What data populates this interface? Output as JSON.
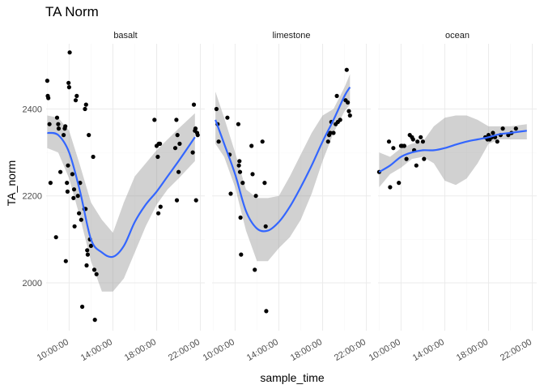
{
  "chart_data": {
    "type": "scatter",
    "title": "TA Norm",
    "xlabel": "sample_time",
    "ylabel": "TA_norm",
    "x_ticks": [
      "10:00:00",
      "14:00:00",
      "18:00:00",
      "22:00:00"
    ],
    "x_tick_hours": [
      10,
      14,
      18,
      22
    ],
    "xlim_hours": [
      7.9,
      22.4
    ],
    "y_ticks": [
      2000,
      2200,
      2400
    ],
    "ylim": [
      1890,
      2550
    ],
    "grid": true,
    "facets": [
      {
        "name": "basalt",
        "points": [
          [
            8.0,
            2465
          ],
          [
            8.05,
            2430
          ],
          [
            8.1,
            2425
          ],
          [
            8.2,
            2365
          ],
          [
            8.3,
            2230
          ],
          [
            8.8,
            2105
          ],
          [
            8.9,
            2380
          ],
          [
            9.0,
            2365
          ],
          [
            9.05,
            2355
          ],
          [
            9.2,
            2255
          ],
          [
            9.5,
            2340
          ],
          [
            9.6,
            2355
          ],
          [
            9.65,
            2360
          ],
          [
            9.7,
            2050
          ],
          [
            9.8,
            2230
          ],
          [
            9.85,
            2210
          ],
          [
            9.9,
            2270
          ],
          [
            9.95,
            2460
          ],
          [
            10.0,
            2450
          ],
          [
            10.05,
            2530
          ],
          [
            10.3,
            2250
          ],
          [
            10.4,
            2195
          ],
          [
            10.45,
            2215
          ],
          [
            10.5,
            2130
          ],
          [
            10.6,
            2420
          ],
          [
            10.7,
            2430
          ],
          [
            10.8,
            2200
          ],
          [
            10.9,
            2160
          ],
          [
            11.0,
            2230
          ],
          [
            11.1,
            2145
          ],
          [
            11.2,
            1945
          ],
          [
            11.4,
            2170
          ],
          [
            11.45,
            2400
          ],
          [
            11.5,
            2170
          ],
          [
            11.55,
            2410
          ],
          [
            11.6,
            2040
          ],
          [
            11.65,
            2075
          ],
          [
            11.7,
            2065
          ],
          [
            11.8,
            2340
          ],
          [
            11.9,
            2100
          ],
          [
            12.0,
            2085
          ],
          [
            12.2,
            2290
          ],
          [
            12.3,
            2030
          ],
          [
            12.5,
            2020
          ],
          [
            12.35,
            1915
          ],
          [
            17.8,
            2375
          ],
          [
            18.0,
            2315
          ],
          [
            18.1,
            2290
          ],
          [
            18.15,
            2160
          ],
          [
            18.2,
            2320
          ],
          [
            18.3,
            2320
          ],
          [
            18.35,
            2175
          ],
          [
            19.7,
            2310
          ],
          [
            19.8,
            2375
          ],
          [
            19.85,
            2190
          ],
          [
            19.9,
            2340
          ],
          [
            20.0,
            2255
          ],
          [
            20.1,
            2320
          ],
          [
            21.3,
            2300
          ],
          [
            21.4,
            2410
          ],
          [
            21.5,
            2350
          ],
          [
            21.55,
            2355
          ],
          [
            21.6,
            2190
          ],
          [
            21.7,
            2345
          ],
          [
            21.75,
            2340
          ]
        ],
        "fit_x": [
          8.0,
          9,
          10,
          11,
          12,
          13,
          14,
          15,
          16,
          17,
          18,
          19,
          20,
          21.5
        ],
        "fit_y": [
          2345,
          2340,
          2300,
          2210,
          2100,
          2070,
          2060,
          2085,
          2140,
          2180,
          2210,
          2245,
          2280,
          2335
        ],
        "fit_lo": [
          2310,
          2300,
          2240,
          2150,
          2050,
          1980,
          1980,
          2010,
          2070,
          2130,
          2180,
          2215,
          2240,
          2280
        ],
        "fit_hi": [
          2385,
          2380,
          2350,
          2270,
          2185,
          2145,
          2115,
          2185,
          2245,
          2275,
          2305,
          2330,
          2355,
          2390
        ]
      },
      {
        "name": "limestone",
        "points": [
          [
            8.3,
            2400
          ],
          [
            8.4,
            2365
          ],
          [
            8.5,
            2325
          ],
          [
            9.3,
            2380
          ],
          [
            9.5,
            2295
          ],
          [
            9.6,
            2205
          ],
          [
            10.3,
            2365
          ],
          [
            10.35,
            2270
          ],
          [
            10.4,
            2280
          ],
          [
            10.45,
            2255
          ],
          [
            10.5,
            2150
          ],
          [
            10.55,
            2065
          ],
          [
            10.7,
            2230
          ],
          [
            11.5,
            2315
          ],
          [
            11.6,
            2250
          ],
          [
            11.8,
            2030
          ],
          [
            11.9,
            2200
          ],
          [
            12.5,
            2325
          ],
          [
            12.7,
            2230
          ],
          [
            12.8,
            2130
          ],
          [
            12.85,
            1935
          ],
          [
            18.5,
            2325
          ],
          [
            18.6,
            2340
          ],
          [
            18.7,
            2345
          ],
          [
            18.8,
            2370
          ],
          [
            19.0,
            2345
          ],
          [
            19.2,
            2365
          ],
          [
            19.3,
            2430
          ],
          [
            19.4,
            2370
          ],
          [
            19.6,
            2375
          ],
          [
            20.1,
            2420
          ],
          [
            20.2,
            2490
          ],
          [
            20.3,
            2415
          ],
          [
            20.4,
            2395
          ],
          [
            20.5,
            2385
          ]
        ],
        "fit_x": [
          8.2,
          9,
          10,
          11,
          12,
          13,
          14,
          15,
          16,
          17,
          18,
          19,
          20,
          20.5
        ],
        "fit_y": [
          2375,
          2320,
          2250,
          2165,
          2125,
          2120,
          2140,
          2175,
          2220,
          2270,
          2325,
          2375,
          2430,
          2450
        ],
        "fit_lo": [
          2320,
          2290,
          2220,
          2120,
          2050,
          2050,
          2080,
          2105,
          2145,
          2205,
          2280,
          2345,
          2395,
          2410
        ],
        "fit_hi": [
          2440,
          2380,
          2300,
          2215,
          2195,
          2195,
          2200,
          2245,
          2295,
          2345,
          2385,
          2400,
          2450,
          2480
        ]
      },
      {
        "name": "ocean",
        "points": [
          [
            8.0,
            2255
          ],
          [
            8.9,
            2325
          ],
          [
            9.0,
            2220
          ],
          [
            9.3,
            2310
          ],
          [
            9.8,
            2230
          ],
          [
            10.0,
            2315
          ],
          [
            10.1,
            2315
          ],
          [
            10.3,
            2315
          ],
          [
            10.5,
            2285
          ],
          [
            10.8,
            2340
          ],
          [
            11.0,
            2335
          ],
          [
            11.1,
            2330
          ],
          [
            11.2,
            2305
          ],
          [
            11.4,
            2270
          ],
          [
            11.5,
            2325
          ],
          [
            11.8,
            2335
          ],
          [
            12.0,
            2325
          ],
          [
            12.1,
            2285
          ],
          [
            17.7,
            2335
          ],
          [
            17.9,
            2330
          ],
          [
            18.0,
            2340
          ],
          [
            18.1,
            2330
          ],
          [
            18.3,
            2335
          ],
          [
            18.4,
            2345
          ],
          [
            18.6,
            2335
          ],
          [
            18.8,
            2325
          ],
          [
            19.1,
            2340
          ],
          [
            19.3,
            2355
          ],
          [
            19.8,
            2340
          ],
          [
            20.1,
            2345
          ],
          [
            20.5,
            2355
          ]
        ],
        "fit_x": [
          8.0,
          9,
          10,
          11,
          12,
          13,
          14,
          15,
          16,
          17,
          18,
          19,
          20,
          21.5
        ],
        "fit_y": [
          2255,
          2270,
          2290,
          2300,
          2305,
          2305,
          2310,
          2318,
          2325,
          2330,
          2335,
          2342,
          2345,
          2350
        ],
        "fit_lo": [
          2220,
          2250,
          2265,
          2285,
          2290,
          2275,
          2235,
          2225,
          2240,
          2275,
          2320,
          2330,
          2330,
          2330
        ],
        "fit_hi": [
          2300,
          2290,
          2310,
          2320,
          2325,
          2360,
          2380,
          2385,
          2385,
          2375,
          2360,
          2360,
          2360,
          2365
        ]
      }
    ],
    "colors": {
      "point": "#000000",
      "fit_line": "#3366ff",
      "ribbon": "#999999",
      "grid_major": "#ebebeb",
      "grid_minor": "#f5f5f5"
    }
  }
}
